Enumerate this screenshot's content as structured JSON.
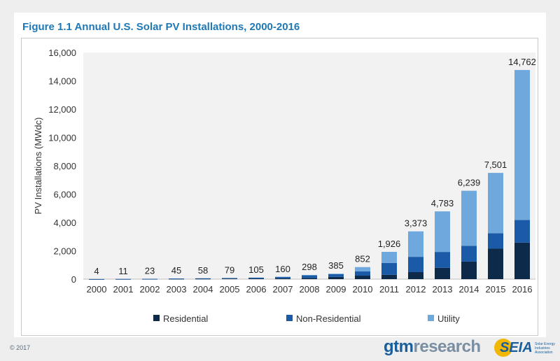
{
  "title": "Figure 1.1 Annual U.S. Solar PV Installations, 2000-2016",
  "copyright": "© 2017",
  "logos": {
    "gtm_part1": "gtm",
    "gtm_part2": "research",
    "seia": "SEIA",
    "seia_sub": "Solar Energy Industries Association"
  },
  "colors": {
    "residential": "#0d2a4a",
    "non_residential": "#1a5aa6",
    "utility": "#6fa8dc",
    "plot_bg": "#f2f2f2",
    "title": "#1f78b4"
  },
  "chart_data": {
    "type": "bar",
    "stacked": true,
    "ylabel": "PV Installations (MWdc)",
    "xlabel": "",
    "ylim": [
      0,
      16000
    ],
    "yticks": [
      0,
      2000,
      4000,
      6000,
      8000,
      10000,
      12000,
      14000,
      16000
    ],
    "ytick_labels": [
      "0",
      "2,000",
      "4,000",
      "6,000",
      "8,000",
      "10,000",
      "12,000",
      "14,000",
      "16,000"
    ],
    "grid": false,
    "legend_position": "bottom",
    "categories": [
      "2000",
      "2001",
      "2002",
      "2003",
      "2004",
      "2005",
      "2006",
      "2007",
      "2008",
      "2009",
      "2010",
      "2011",
      "2012",
      "2013",
      "2014",
      "2015",
      "2016"
    ],
    "totals": [
      4,
      11,
      23,
      45,
      58,
      79,
      105,
      160,
      298,
      385,
      852,
      1926,
      3373,
      4783,
      6239,
      7501,
      14762
    ],
    "total_labels": [
      "4",
      "11",
      "23",
      "45",
      "58",
      "79",
      "105",
      "160",
      "298",
      "385",
      "852",
      "1,926",
      "3,373",
      "4,783",
      "6,239",
      "7,501",
      "14,762"
    ],
    "series": [
      {
        "name": "Residential",
        "values": [
          1,
          5,
          12,
          20,
          27,
          38,
          44,
          58,
          80,
          156,
          246,
          306,
          494,
          800,
          1240,
          2150,
          2580
        ]
      },
      {
        "name": "Non-Residential",
        "values": [
          3,
          6,
          11,
          25,
          31,
          41,
          61,
          102,
          198,
          200,
          300,
          840,
          1080,
          1120,
          1110,
          1090,
          1600
        ]
      },
      {
        "name": "Utility",
        "values": [
          0,
          0,
          0,
          0,
          0,
          0,
          0,
          0,
          20,
          29,
          306,
          780,
          1799,
          2863,
          3889,
          4261,
          10582
        ]
      }
    ]
  }
}
